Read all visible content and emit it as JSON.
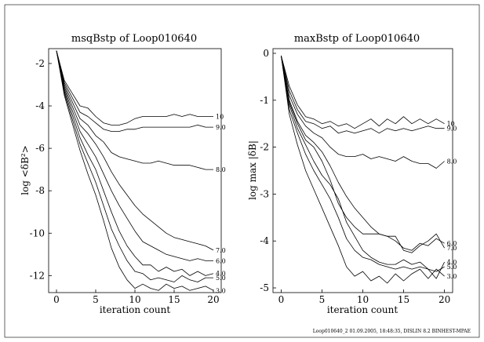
{
  "footer": "Loop010640_2     01.09.2005, 18:48:35, DISLIN 8.2 BINHEST-MPAE",
  "chart_data": [
    {
      "type": "line",
      "title": "msqBstp  of Loop010640",
      "xlabel": "iteration count",
      "ylabel": "log <δB²>",
      "xlim": [
        -1,
        21
      ],
      "ylim": [
        -12.8,
        -1.3
      ],
      "xticks": [
        0,
        5,
        10,
        15,
        20
      ],
      "yticks": [
        -2,
        -4,
        -6,
        -8,
        -10,
        -12
      ],
      "series": [
        {
          "name": "10",
          "x": [
            0,
            1,
            2,
            3,
            4,
            5,
            6,
            7,
            8,
            9,
            10,
            11,
            12,
            13,
            14,
            15,
            16,
            17,
            18,
            19,
            20
          ],
          "y": [
            -1.4,
            -2.8,
            -3.4,
            -4.0,
            -4.1,
            -4.5,
            -4.8,
            -4.9,
            -4.9,
            -4.8,
            -4.6,
            -4.5,
            -4.5,
            -4.5,
            -4.5,
            -4.4,
            -4.5,
            -4.4,
            -4.5,
            -4.5,
            -4.5
          ]
        },
        {
          "name": "9.0",
          "x": [
            0,
            1,
            2,
            3,
            4,
            5,
            6,
            7,
            8,
            9,
            10,
            11,
            12,
            13,
            14,
            15,
            16,
            17,
            18,
            19,
            20
          ],
          "y": [
            -1.4,
            -2.9,
            -3.6,
            -4.3,
            -4.5,
            -4.8,
            -5.1,
            -5.2,
            -5.2,
            -5.1,
            -5.1,
            -5.0,
            -5.0,
            -5.0,
            -5.0,
            -5.0,
            -5.0,
            -5.0,
            -4.9,
            -5.0,
            -5.0
          ]
        },
        {
          "name": "8.0",
          "x": [
            0,
            1,
            2,
            3,
            4,
            5,
            6,
            7,
            8,
            9,
            10,
            11,
            12,
            13,
            14,
            15,
            16,
            17,
            18,
            19,
            20
          ],
          "y": [
            -1.4,
            -3.0,
            -3.8,
            -4.6,
            -4.9,
            -5.4,
            -5.7,
            -6.2,
            -6.4,
            -6.5,
            -6.6,
            -6.7,
            -6.7,
            -6.6,
            -6.7,
            -6.8,
            -6.8,
            -6.8,
            -6.9,
            -7.0,
            -7.0
          ]
        },
        {
          "name": "7.0",
          "x": [
            0,
            1,
            2,
            3,
            4,
            5,
            6,
            7,
            8,
            9,
            10,
            11,
            12,
            13,
            14,
            15,
            16,
            17,
            18,
            19,
            20
          ],
          "y": [
            -1.4,
            -3.1,
            -4.0,
            -4.9,
            -5.3,
            -5.8,
            -6.4,
            -7.1,
            -7.7,
            -8.2,
            -8.7,
            -9.1,
            -9.4,
            -9.7,
            -10.0,
            -10.2,
            -10.3,
            -10.4,
            -10.5,
            -10.6,
            -10.8
          ]
        },
        {
          "name": "6.0",
          "x": [
            0,
            1,
            2,
            3,
            4,
            5,
            6,
            7,
            8,
            9,
            10,
            11,
            12,
            13,
            14,
            15,
            16,
            17,
            18,
            19,
            20
          ],
          "y": [
            -1.4,
            -3.2,
            -4.2,
            -5.2,
            -5.8,
            -6.4,
            -7.2,
            -8.0,
            -8.7,
            -9.3,
            -9.9,
            -10.4,
            -10.6,
            -10.8,
            -11.0,
            -11.1,
            -11.2,
            -11.3,
            -11.2,
            -11.3,
            -11.3
          ]
        },
        {
          "name": "4.0",
          "x": [
            0,
            1,
            2,
            3,
            4,
            5,
            6,
            7,
            8,
            9,
            10,
            11,
            12,
            13,
            14,
            15,
            16,
            17,
            18,
            19,
            20
          ],
          "y": [
            -1.4,
            -3.3,
            -4.4,
            -5.5,
            -6.3,
            -7.0,
            -8.0,
            -9.0,
            -9.9,
            -10.6,
            -11.1,
            -11.5,
            -11.5,
            -11.8,
            -11.6,
            -11.8,
            -11.7,
            -12.0,
            -11.8,
            -12.0,
            -11.9
          ]
        },
        {
          "name": "5.0",
          "x": [
            0,
            1,
            2,
            3,
            4,
            5,
            6,
            7,
            8,
            9,
            10,
            11,
            12,
            13,
            14,
            15,
            16,
            17,
            18,
            19,
            20
          ],
          "y": [
            -1.4,
            -3.4,
            -4.6,
            -5.8,
            -6.7,
            -7.6,
            -8.7,
            -9.8,
            -10.6,
            -11.3,
            -11.8,
            -11.9,
            -12.2,
            -12.1,
            -12.2,
            -12.3,
            -12.0,
            -12.2,
            -12.3,
            -12.1,
            -12.1
          ]
        },
        {
          "name": "3.0",
          "x": [
            0,
            1,
            2,
            3,
            4,
            5,
            6,
            7,
            8,
            9,
            10,
            11,
            12,
            13,
            14,
            15,
            16,
            17,
            18,
            19,
            20
          ],
          "y": [
            -1.4,
            -3.5,
            -4.8,
            -6.1,
            -7.2,
            -8.2,
            -9.4,
            -10.7,
            -11.6,
            -12.2,
            -12.6,
            -12.4,
            -12.6,
            -12.7,
            -12.4,
            -12.6,
            -12.5,
            -12.7,
            -12.6,
            -12.5,
            -12.7
          ]
        }
      ]
    },
    {
      "type": "line",
      "title": "maxBstp  of Loop010640",
      "xlabel": "iteration count",
      "ylabel": "log max |δB|",
      "xlim": [
        -1,
        21
      ],
      "ylim": [
        -5.1,
        0.1
      ],
      "xticks": [
        0,
        5,
        10,
        15,
        20
      ],
      "yticks": [
        0,
        -1,
        -2,
        -3,
        -4,
        -5
      ],
      "series": [
        {
          "name": "10",
          "x": [
            0,
            1,
            2,
            3,
            4,
            5,
            6,
            7,
            8,
            9,
            10,
            11,
            12,
            13,
            14,
            15,
            16,
            17,
            18,
            19,
            20
          ],
          "y": [
            -0.05,
            -0.7,
            -1.1,
            -1.35,
            -1.4,
            -1.5,
            -1.45,
            -1.55,
            -1.5,
            -1.6,
            -1.5,
            -1.4,
            -1.55,
            -1.4,
            -1.5,
            -1.35,
            -1.5,
            -1.4,
            -1.5,
            -1.4,
            -1.5
          ]
        },
        {
          "name": "9.0",
          "x": [
            0,
            1,
            2,
            3,
            4,
            5,
            6,
            7,
            8,
            9,
            10,
            11,
            12,
            13,
            14,
            15,
            16,
            17,
            18,
            19,
            20
          ],
          "y": [
            -0.05,
            -0.8,
            -1.2,
            -1.45,
            -1.5,
            -1.6,
            -1.55,
            -1.7,
            -1.65,
            -1.7,
            -1.65,
            -1.6,
            -1.7,
            -1.6,
            -1.65,
            -1.6,
            -1.65,
            -1.6,
            -1.55,
            -1.6,
            -1.6
          ]
        },
        {
          "name": "8.0",
          "x": [
            0,
            1,
            2,
            3,
            4,
            5,
            6,
            7,
            8,
            9,
            10,
            11,
            12,
            13,
            14,
            15,
            16,
            17,
            18,
            19,
            20
          ],
          "y": [
            -0.05,
            -0.9,
            -1.3,
            -1.55,
            -1.7,
            -1.8,
            -2.0,
            -2.15,
            -2.2,
            -2.2,
            -2.15,
            -2.25,
            -2.2,
            -2.25,
            -2.3,
            -2.2,
            -2.3,
            -2.35,
            -2.35,
            -2.45,
            -2.3
          ]
        },
        {
          "name": "6.0",
          "x": [
            0,
            1,
            2,
            3,
            4,
            5,
            6,
            7,
            8,
            9,
            10,
            11,
            12,
            13,
            14,
            15,
            16,
            17,
            18,
            19,
            20
          ],
          "y": [
            -0.05,
            -1.0,
            -1.45,
            -1.75,
            -1.9,
            -2.1,
            -2.4,
            -2.75,
            -3.05,
            -3.3,
            -3.5,
            -3.7,
            -3.85,
            -3.9,
            -4.0,
            -4.15,
            -4.2,
            -4.05,
            -4.1,
            -3.95,
            -4.05
          ]
        },
        {
          "name": "7.0",
          "x": [
            0,
            1,
            2,
            3,
            4,
            5,
            6,
            7,
            8,
            9,
            10,
            11,
            12,
            13,
            14,
            15,
            16,
            17,
            18,
            19,
            20
          ],
          "y": [
            -0.05,
            -1.05,
            -1.5,
            -1.85,
            -2.0,
            -2.3,
            -2.7,
            -3.2,
            -3.5,
            -3.7,
            -3.85,
            -3.85,
            -3.85,
            -3.9,
            -3.9,
            -4.2,
            -4.25,
            -4.1,
            -4.0,
            -3.85,
            -4.15
          ]
        },
        {
          "name": "4.0",
          "x": [
            0,
            1,
            2,
            3,
            4,
            5,
            6,
            7,
            8,
            9,
            10,
            11,
            12,
            13,
            14,
            15,
            16,
            17,
            18,
            19,
            20
          ],
          "y": [
            -0.05,
            -1.1,
            -1.6,
            -1.95,
            -2.3,
            -2.6,
            -2.8,
            -3.1,
            -3.6,
            -3.9,
            -4.2,
            -4.35,
            -4.45,
            -4.5,
            -4.5,
            -4.4,
            -4.5,
            -4.45,
            -4.6,
            -4.8,
            -4.45
          ]
        },
        {
          "name": "5.0",
          "x": [
            0,
            1,
            2,
            3,
            4,
            5,
            6,
            7,
            8,
            9,
            10,
            11,
            12,
            13,
            14,
            15,
            16,
            17,
            18,
            19,
            20
          ],
          "y": [
            -0.05,
            -1.2,
            -1.7,
            -2.15,
            -2.5,
            -2.8,
            -3.1,
            -3.5,
            -3.95,
            -4.2,
            -4.35,
            -4.4,
            -4.5,
            -4.55,
            -4.6,
            -4.55,
            -4.6,
            -4.55,
            -4.6,
            -4.65,
            -4.55
          ]
        },
        {
          "name": "3.0",
          "x": [
            0,
            1,
            2,
            3,
            4,
            5,
            6,
            7,
            8,
            9,
            10,
            11,
            12,
            13,
            14,
            15,
            16,
            17,
            18,
            19,
            20
          ],
          "y": [
            -0.05,
            -1.3,
            -1.95,
            -2.5,
            -2.9,
            -3.3,
            -3.7,
            -4.1,
            -4.55,
            -4.75,
            -4.65,
            -4.85,
            -4.75,
            -4.9,
            -4.7,
            -4.85,
            -4.7,
            -4.6,
            -4.8,
            -4.6,
            -4.75
          ]
        }
      ]
    }
  ]
}
